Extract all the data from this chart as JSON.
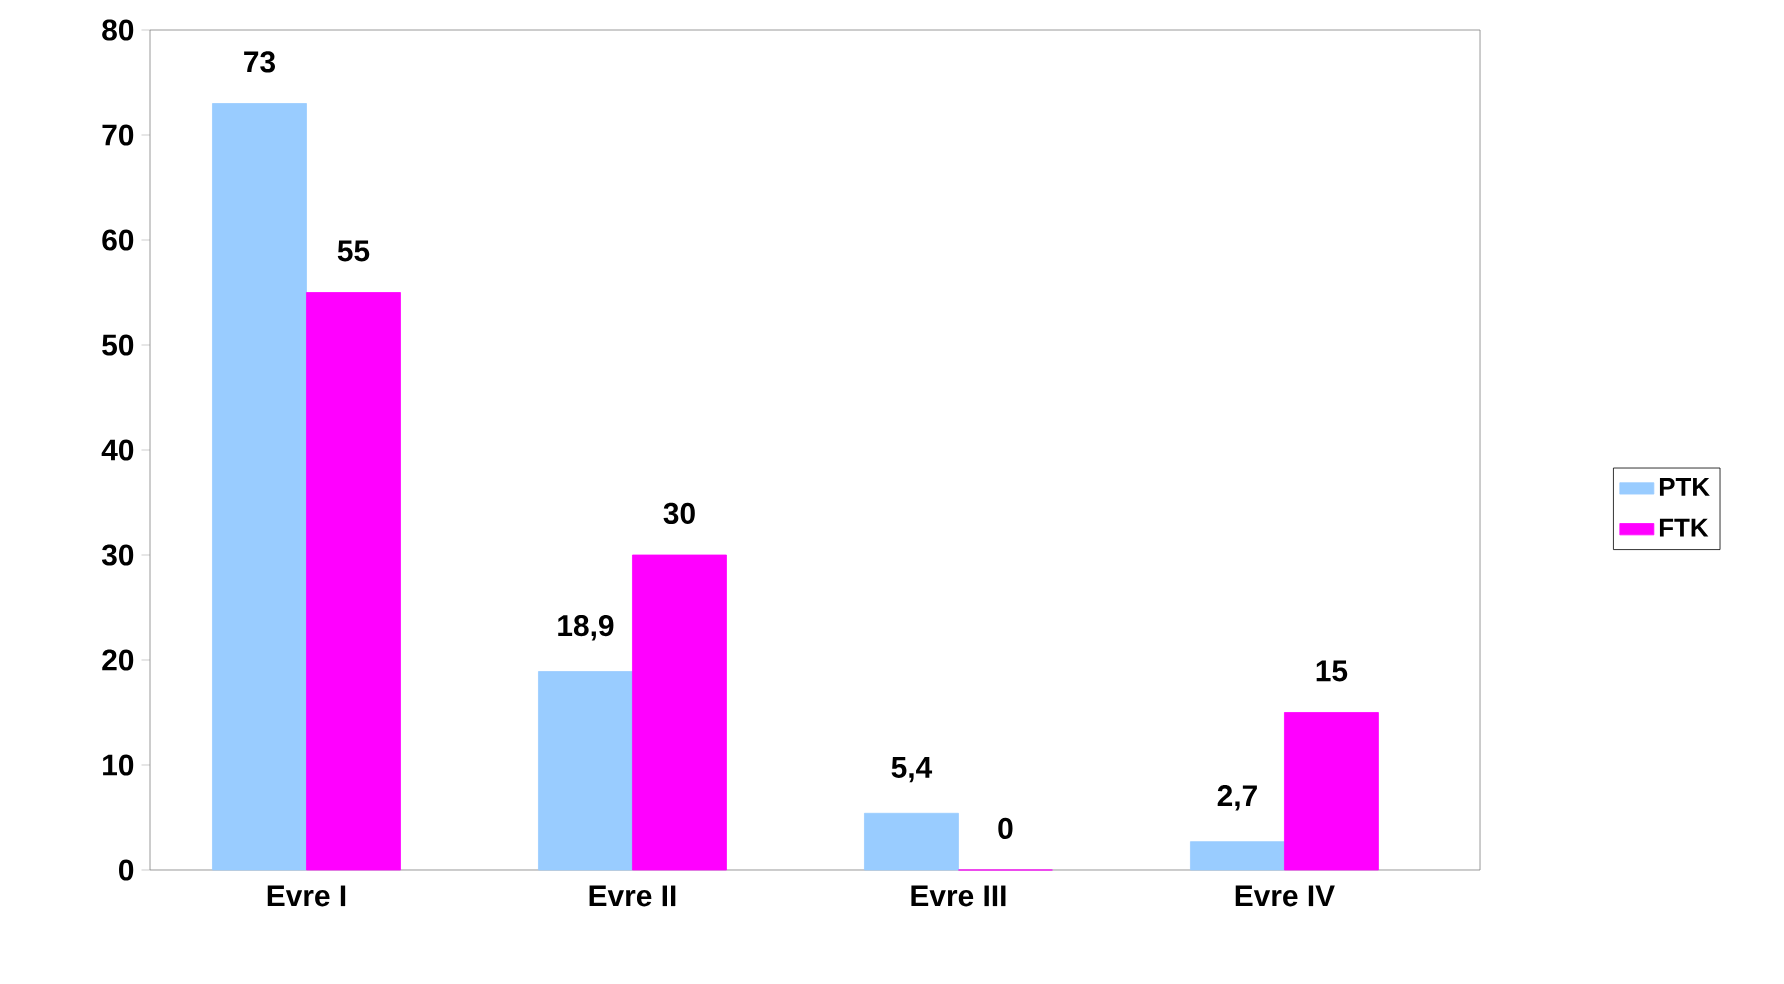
{
  "chart_data": {
    "type": "bar",
    "categories": [
      "Evre I",
      "Evre II",
      "Evre III",
      "Evre IV"
    ],
    "series": [
      {
        "name": "PTK",
        "color": "#99ccff",
        "values": [
          73,
          18.9,
          5.4,
          2.7
        ],
        "value_labels": [
          "73",
          "18,9",
          "5,4",
          "2,7"
        ]
      },
      {
        "name": "FTK",
        "color": "#ff00ff",
        "values": [
          55,
          30,
          0,
          15
        ],
        "value_labels": [
          "55",
          "30",
          "0",
          "15"
        ]
      }
    ],
    "ylim": [
      0,
      80
    ],
    "yticks": [
      0,
      10,
      20,
      30,
      40,
      50,
      60,
      70,
      80
    ],
    "legend": "right"
  }
}
